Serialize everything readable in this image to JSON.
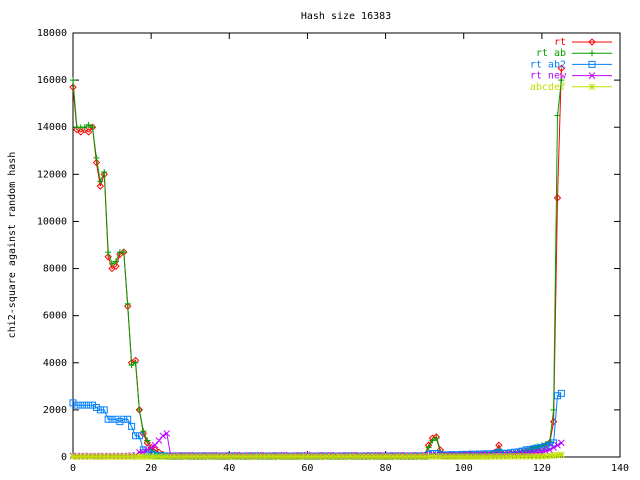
{
  "chart_data": {
    "type": "line",
    "title": "Hash size 16383",
    "ylabel": "chi2-square against random hash",
    "xlim": [
      0,
      140
    ],
    "xticks": [
      0,
      20,
      40,
      60,
      80,
      100,
      120,
      140
    ],
    "ylim": [
      0,
      18000
    ],
    "yticks": [
      0,
      2000,
      4000,
      6000,
      8000,
      10000,
      12000,
      14000,
      16000,
      18000
    ],
    "legend": "upper right",
    "x": [
      0,
      1,
      2,
      3,
      4,
      5,
      6,
      7,
      8,
      9,
      10,
      11,
      12,
      13,
      14,
      15,
      16,
      17,
      18,
      19,
      20,
      21,
      22,
      23,
      24,
      25,
      26,
      27,
      28,
      29,
      30,
      31,
      32,
      33,
      34,
      35,
      36,
      37,
      38,
      39,
      40,
      41,
      42,
      43,
      44,
      45,
      46,
      47,
      48,
      49,
      50,
      51,
      52,
      53,
      54,
      55,
      56,
      57,
      58,
      59,
      60,
      61,
      62,
      63,
      64,
      65,
      66,
      67,
      68,
      69,
      70,
      71,
      72,
      73,
      74,
      75,
      76,
      77,
      78,
      79,
      80,
      81,
      82,
      83,
      84,
      85,
      86,
      87,
      88,
      89,
      90,
      91,
      92,
      93,
      94,
      95,
      96,
      97,
      98,
      99,
      100,
      101,
      102,
      103,
      104,
      105,
      106,
      107,
      108,
      109,
      110,
      111,
      112,
      113,
      114,
      115,
      116,
      117,
      118,
      119,
      120,
      121,
      122,
      123,
      124,
      125
    ],
    "series": [
      {
        "name": "rt",
        "color": "#ff0000",
        "values": [
          15700,
          13900,
          13800,
          13900,
          13800,
          14000,
          12500,
          11500,
          12000,
          8500,
          8000,
          8100,
          8600,
          8700,
          6400,
          4000,
          4100,
          2000,
          1000,
          600,
          400,
          300,
          200,
          100,
          50,
          40,
          30,
          50,
          20,
          40,
          60,
          40,
          30,
          50,
          20,
          40,
          60,
          40,
          30,
          50,
          20,
          40,
          60,
          40,
          30,
          50,
          20,
          40,
          60,
          40,
          30,
          50,
          20,
          40,
          60,
          40,
          30,
          50,
          20,
          40,
          60,
          40,
          30,
          50,
          20,
          40,
          60,
          40,
          30,
          50,
          20,
          40,
          60,
          40,
          30,
          50,
          20,
          40,
          60,
          40,
          30,
          50,
          20,
          40,
          60,
          40,
          30,
          50,
          20,
          40,
          60,
          500,
          800,
          850,
          300,
          50,
          40,
          60,
          50,
          70,
          60,
          50,
          80,
          60,
          70,
          90,
          80,
          100,
          200,
          500,
          100,
          120,
          150,
          130,
          180,
          200,
          250,
          300,
          350,
          300,
          400,
          500,
          600,
          1500,
          11000,
          16500
        ]
      },
      {
        "name": "rt ab",
        "color": "#00a000",
        "values": [
          16000,
          14000,
          14000,
          14000,
          14100,
          14000,
          12700,
          11700,
          12100,
          8700,
          8200,
          8300,
          8700,
          8700,
          6500,
          3900,
          4000,
          2000,
          1100,
          700,
          300,
          200,
          100,
          80,
          50,
          30,
          50,
          40,
          30,
          60,
          40,
          30,
          50,
          40,
          30,
          60,
          40,
          30,
          50,
          40,
          30,
          60,
          40,
          30,
          50,
          40,
          30,
          60,
          40,
          30,
          50,
          40,
          30,
          60,
          40,
          30,
          50,
          40,
          30,
          60,
          40,
          30,
          50,
          40,
          30,
          60,
          40,
          30,
          50,
          40,
          30,
          60,
          40,
          30,
          50,
          40,
          30,
          60,
          40,
          30,
          50,
          40,
          30,
          60,
          40,
          30,
          50,
          40,
          30,
          60,
          40,
          400,
          700,
          800,
          200,
          40,
          50,
          60,
          50,
          60,
          70,
          60,
          70,
          80,
          70,
          90,
          100,
          90,
          150,
          300,
          100,
          100,
          130,
          150,
          170,
          200,
          250,
          300,
          400,
          450,
          500,
          550,
          650,
          2000,
          14500,
          16000
        ]
      },
      {
        "name": "rt ab2",
        "color": "#0080ff",
        "values": [
          2300,
          2200,
          2200,
          2200,
          2200,
          2200,
          2100,
          2000,
          2000,
          1600,
          1600,
          1600,
          1500,
          1600,
          1600,
          1300,
          900,
          900,
          300,
          200,
          100,
          80,
          60,
          50,
          40,
          30,
          40,
          30,
          50,
          40,
          30,
          30,
          40,
          30,
          50,
          40,
          30,
          30,
          40,
          30,
          50,
          40,
          30,
          30,
          40,
          30,
          50,
          40,
          30,
          30,
          40,
          30,
          50,
          40,
          30,
          30,
          40,
          30,
          50,
          40,
          30,
          30,
          40,
          30,
          50,
          40,
          30,
          30,
          40,
          30,
          50,
          40,
          30,
          30,
          40,
          30,
          50,
          40,
          30,
          30,
          40,
          30,
          50,
          40,
          30,
          30,
          40,
          30,
          50,
          40,
          30,
          100,
          150,
          150,
          100,
          80,
          90,
          100,
          90,
          100,
          110,
          100,
          120,
          110,
          130,
          120,
          140,
          130,
          150,
          200,
          150,
          160,
          180,
          200,
          220,
          250,
          300,
          320,
          350,
          380,
          400,
          450,
          500,
          600,
          2600,
          2700
        ]
      },
      {
        "name": "rt new",
        "color": "#c000ff",
        "values": [
          50,
          40,
          50,
          40,
          50,
          40,
          50,
          40,
          50,
          40,
          50,
          40,
          50,
          40,
          50,
          60,
          80,
          200,
          200,
          300,
          400,
          500,
          700,
          900,
          1000,
          60,
          50,
          70,
          60,
          50,
          80,
          60,
          50,
          70,
          60,
          50,
          80,
          60,
          50,
          70,
          60,
          50,
          80,
          60,
          50,
          70,
          60,
          50,
          80,
          60,
          50,
          70,
          60,
          50,
          80,
          60,
          50,
          70,
          60,
          50,
          80,
          60,
          50,
          70,
          60,
          50,
          80,
          60,
          50,
          70,
          60,
          50,
          80,
          60,
          50,
          70,
          60,
          50,
          80,
          60,
          50,
          70,
          60,
          50,
          80,
          60,
          50,
          70,
          60,
          50,
          80,
          80,
          90,
          80,
          70,
          60,
          70,
          80,
          70,
          60,
          80,
          90,
          80,
          70,
          90,
          100,
          90,
          80,
          90,
          100,
          90,
          100,
          110,
          120,
          130,
          140,
          150,
          160,
          170,
          180,
          200,
          250,
          300,
          400,
          500,
          600
        ]
      },
      {
        "name": "abcdef",
        "color": "#c0e000",
        "values": [
          20,
          10,
          20,
          10,
          20,
          20,
          10,
          20,
          10,
          20,
          20,
          10,
          20,
          10,
          20,
          20,
          10,
          20,
          10,
          20,
          20,
          10,
          20,
          10,
          20,
          10,
          20,
          15,
          10,
          20,
          15,
          10,
          20,
          15,
          10,
          20,
          15,
          10,
          20,
          15,
          10,
          20,
          15,
          10,
          20,
          15,
          10,
          20,
          15,
          10,
          20,
          15,
          10,
          20,
          15,
          10,
          20,
          15,
          10,
          20,
          15,
          10,
          20,
          15,
          10,
          20,
          15,
          10,
          20,
          15,
          10,
          20,
          15,
          10,
          20,
          15,
          10,
          20,
          15,
          10,
          20,
          15,
          10,
          20,
          15,
          10,
          20,
          15,
          10,
          20,
          15,
          20,
          20,
          20,
          20,
          20,
          10,
          20,
          10,
          20,
          10,
          20,
          10,
          20,
          10,
          20,
          10,
          20,
          20,
          20,
          20,
          20,
          30,
          20,
          30,
          20,
          30,
          20,
          30,
          20,
          30,
          40,
          50,
          60,
          80,
          100
        ]
      }
    ]
  }
}
